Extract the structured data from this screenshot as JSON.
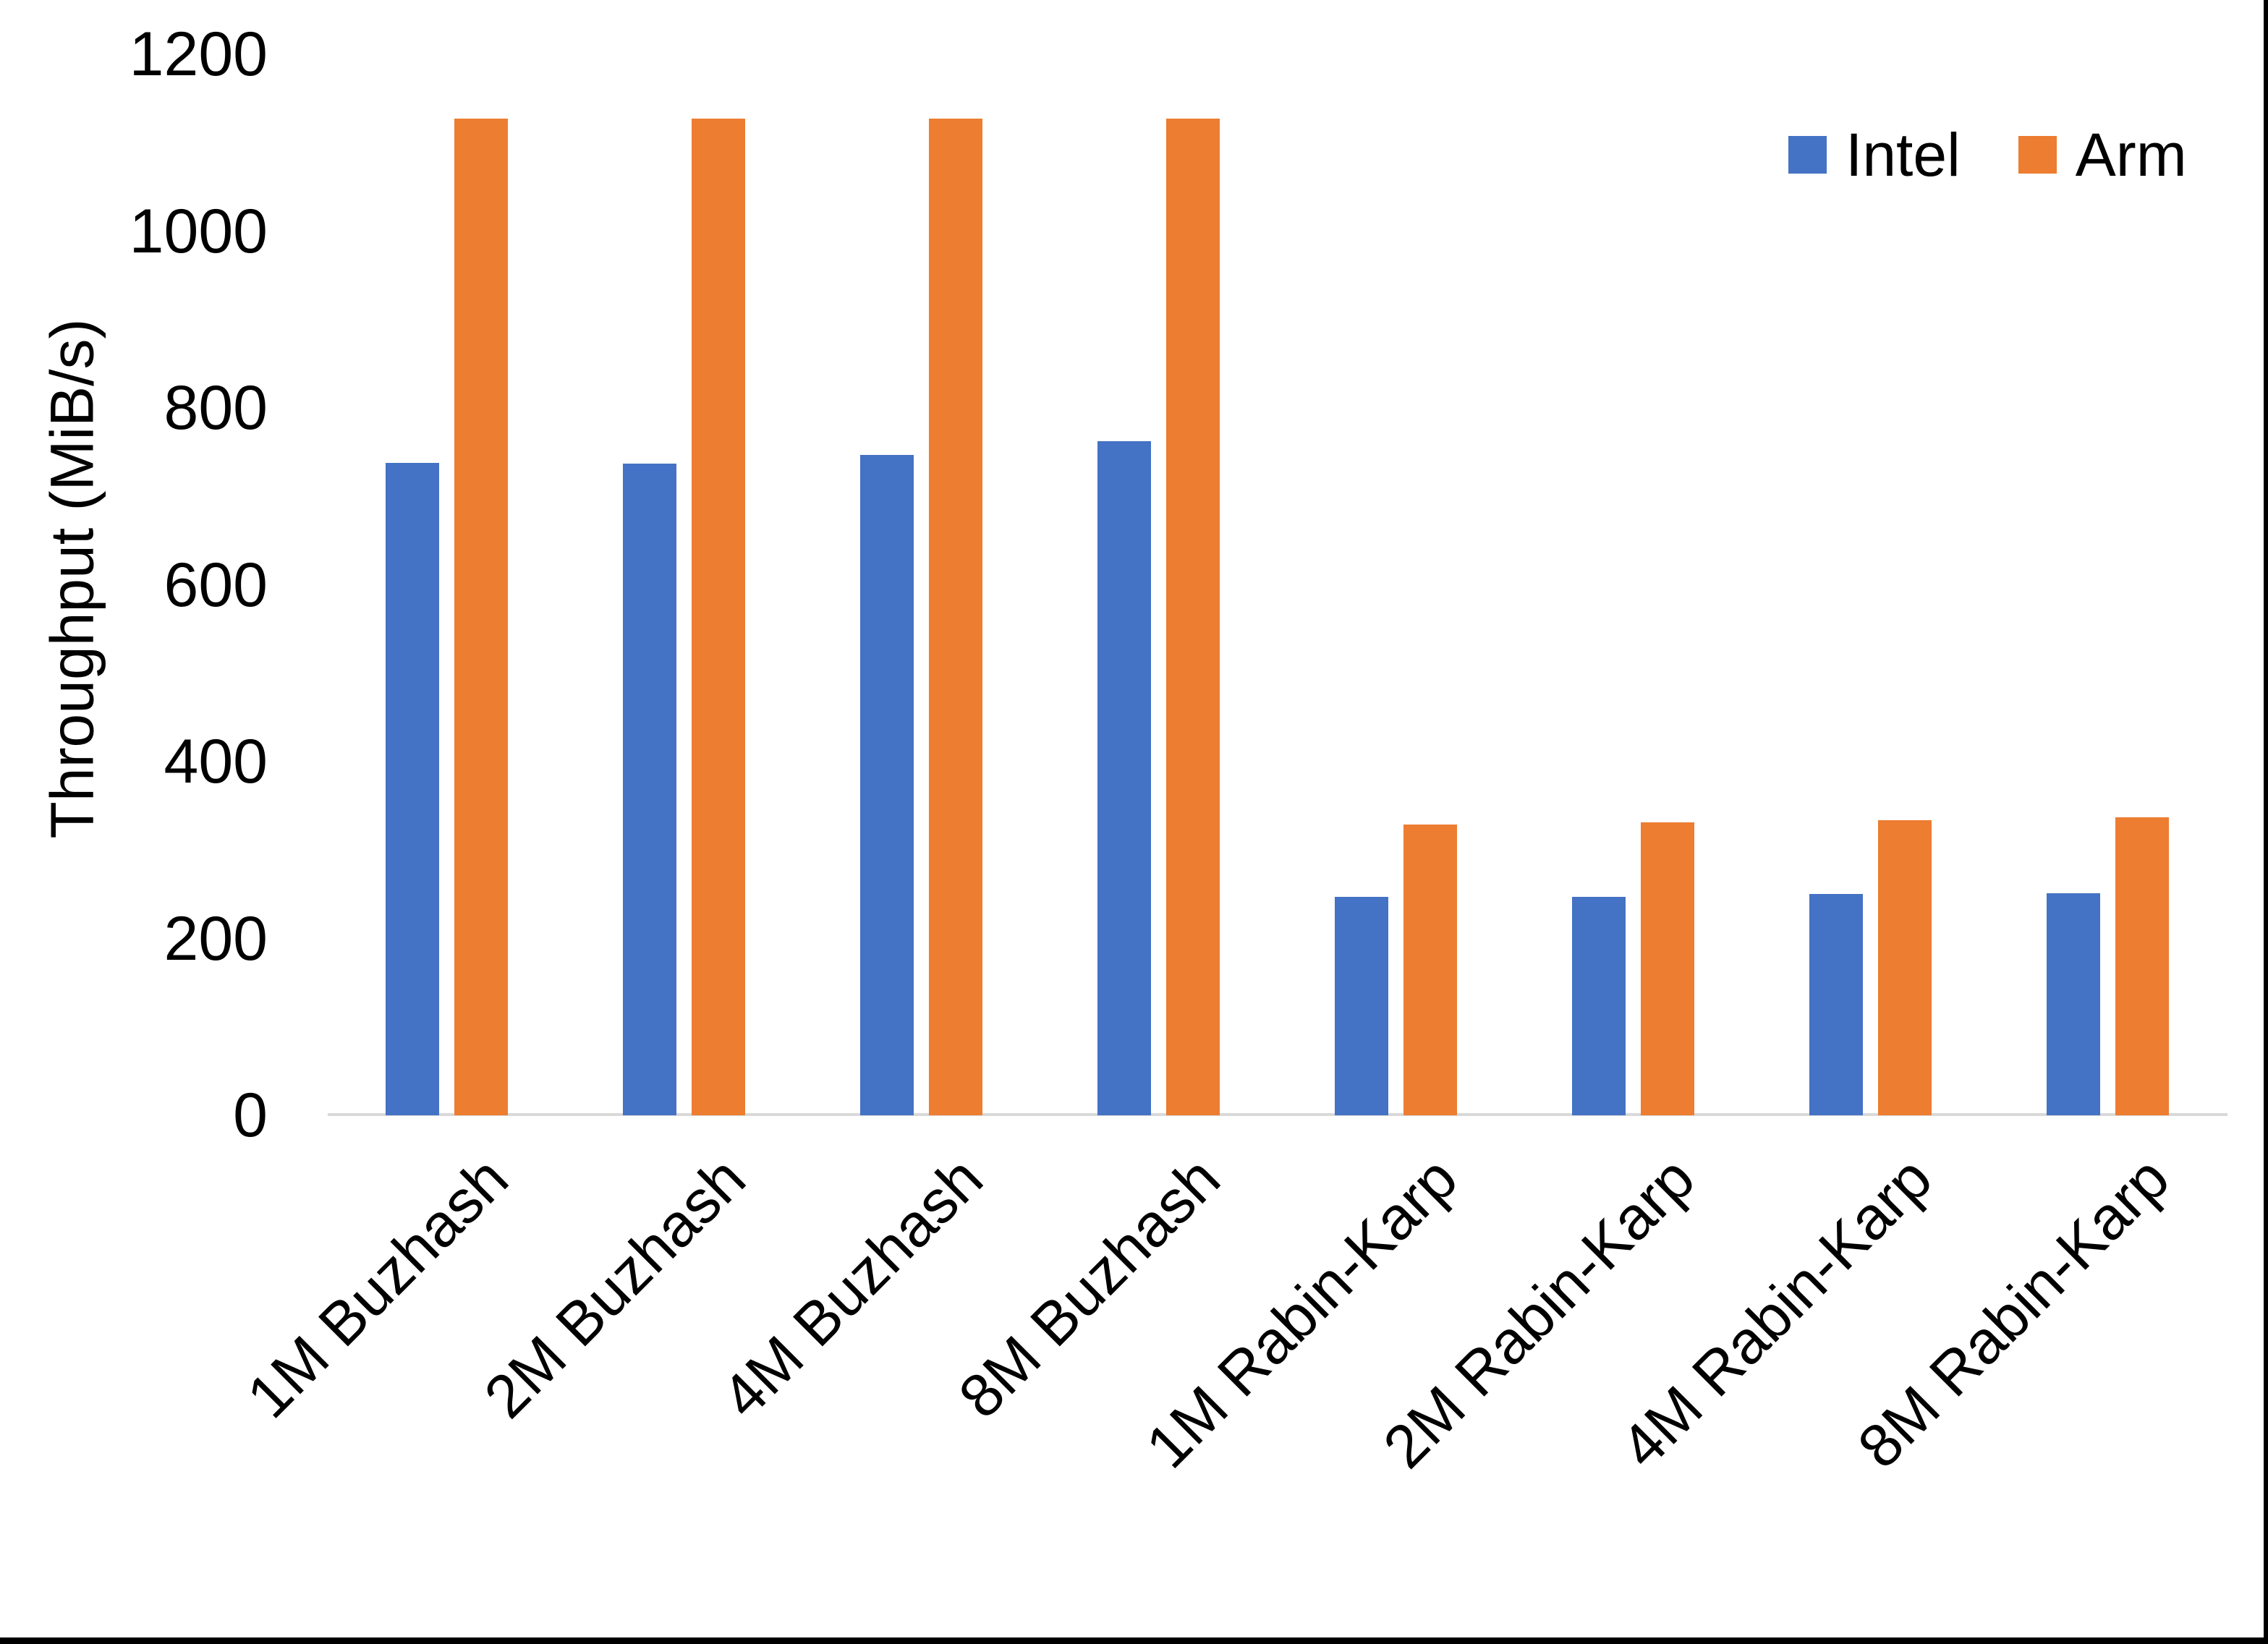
{
  "chart_data": {
    "type": "bar",
    "title": "",
    "xlabel": "",
    "ylabel": "Throughput (MiB/s)",
    "ylim": [
      0,
      1200
    ],
    "yticks": [
      0,
      200,
      400,
      600,
      800,
      1000,
      1200
    ],
    "grid": false,
    "legend_position": "top-right",
    "categories": [
      "1M Buzhash",
      "2M Buzhash",
      "4M Buzhash",
      "8M Buzhash",
      "1M Rabin-Karp",
      "2M Rabin-Karp",
      "4M Rabin-Karp",
      "8M Rabin-Karp"
    ],
    "series": [
      {
        "name": "Intel",
        "color": "#4472C4",
        "values": [
          738,
          737,
          747,
          762,
          247,
          247,
          250,
          251
        ]
      },
      {
        "name": "Arm",
        "color": "#ED7D31",
        "values": [
          1127,
          1127,
          1127,
          1127,
          329,
          331,
          334,
          337
        ]
      }
    ]
  },
  "axes": {
    "y_title": "Throughput (MiB/s)",
    "y_tick_labels": [
      "1200",
      "1000",
      "800",
      "600",
      "400",
      "200",
      "0"
    ]
  },
  "legend": {
    "items": [
      {
        "label": "Intel",
        "color": "#4472C4"
      },
      {
        "label": "Arm",
        "color": "#ED7D31"
      }
    ]
  },
  "colors": {
    "intel": "#4472C4",
    "arm": "#ED7D31",
    "axis_line": "#D9D9D9",
    "text": "#000000",
    "border": "#000000"
  }
}
